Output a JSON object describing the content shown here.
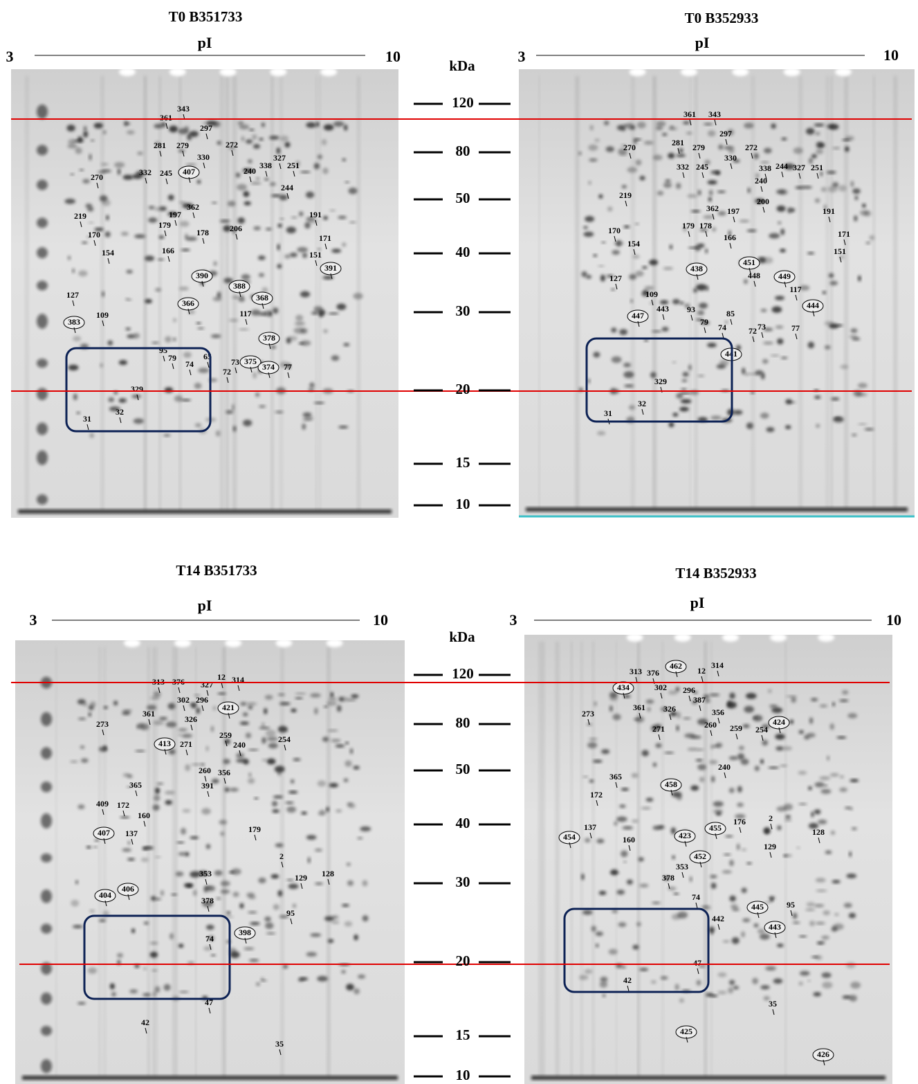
{
  "panels": [
    {
      "title": "T0 B351733",
      "pi_label": "pI",
      "pi_start": 3,
      "pi_end": 10,
      "spots": [
        343,
        361,
        297,
        281,
        279,
        272,
        330,
        327,
        251,
        338,
        240,
        270,
        332,
        245,
        407,
        244,
        362,
        219,
        197,
        206,
        191,
        179,
        178,
        170,
        171,
        154,
        166,
        151,
        391,
        390,
        388,
        368,
        366,
        127,
        117,
        109,
        383,
        378,
        95,
        79,
        74,
        65,
        73,
        375,
        374,
        77,
        72,
        329,
        31,
        32
      ]
    },
    {
      "title": "T0 B352933",
      "pi_label": "pI",
      "pi_start": 3,
      "pi_end": 10,
      "spots": [
        361,
        343,
        297,
        270,
        281,
        279,
        272,
        330,
        338,
        244,
        327,
        251,
        332,
        245,
        240,
        219,
        200,
        362,
        197,
        191,
        179,
        178,
        170,
        171,
        166,
        154,
        151,
        451,
        438,
        448,
        449,
        127,
        117,
        109,
        444,
        443,
        93,
        447,
        85,
        79,
        74,
        72,
        73,
        77,
        441,
        329,
        32,
        31
      ]
    },
    {
      "title": "T14 B351733",
      "pi_label": "pI",
      "pi_start": 3,
      "pi_end": 10,
      "spots": [
        313,
        376,
        327,
        12,
        314,
        302,
        296,
        421,
        361,
        326,
        273,
        259,
        254,
        413,
        271,
        240,
        260,
        356,
        391,
        365,
        409,
        172,
        160,
        179,
        407,
        137,
        2,
        353,
        129,
        128,
        404,
        406,
        378,
        95,
        398,
        74,
        47,
        42,
        35
      ]
    },
    {
      "title": "T14 B352933",
      "pi_label": "pI",
      "pi_start": 3,
      "pi_end": 10,
      "spots": [
        462,
        313,
        376,
        12,
        314,
        434,
        302,
        296,
        387,
        361,
        326,
        356,
        273,
        424,
        260,
        271,
        259,
        254,
        240,
        365,
        458,
        172,
        176,
        2,
        455,
        137,
        128,
        454,
        160,
        423,
        129,
        452,
        353,
        378,
        74,
        445,
        95,
        442,
        443,
        47,
        42,
        35,
        425,
        426
      ]
    }
  ],
  "ladders": [
    {
      "unit": "kDa",
      "marks": [
        120,
        80,
        50,
        40,
        30,
        20,
        15,
        10
      ]
    },
    {
      "unit": "kDa",
      "marks": [
        120,
        80,
        50,
        40,
        30,
        20,
        15,
        10
      ]
    }
  ]
}
